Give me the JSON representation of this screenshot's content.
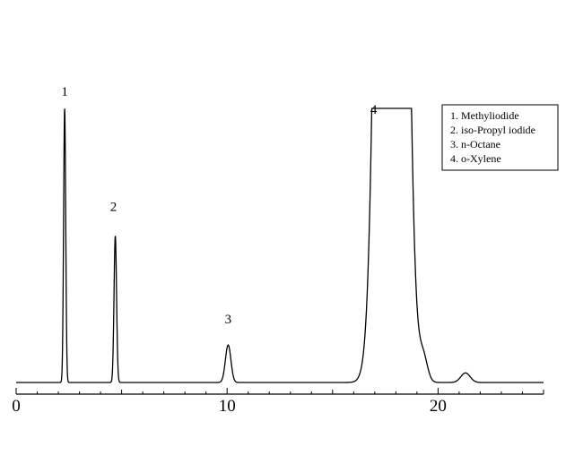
{
  "chart_data": {
    "type": "line",
    "title": "",
    "xlabel": "",
    "ylabel": "",
    "xlim": [
      0,
      25
    ],
    "ylim": [
      0,
      1
    ],
    "grid": false,
    "legend_position": "top-right",
    "line_color": "#000000",
    "x_ticks": [
      0,
      10,
      20
    ],
    "x_tick_labels": [
      "0",
      "10",
      "20"
    ],
    "peaks": [
      {
        "label": "1",
        "x": 2.3,
        "height": 1.0,
        "width": 0.05
      },
      {
        "label": "2",
        "x": 4.7,
        "height": 0.535,
        "width": 0.06
      },
      {
        "label": "3",
        "x": 10.05,
        "height": 0.137,
        "width": 0.13
      },
      {
        "label": "4",
        "x": 17.8,
        "height": 1.0,
        "width": 0.45
      }
    ],
    "minor_peaks": [
      {
        "x": 19.3,
        "height": 0.087,
        "width": 0.2
      },
      {
        "x": 21.3,
        "height": 0.035,
        "width": 0.22
      }
    ],
    "legend": [
      "1.  Methyliodide",
      "2.  iso-Propyl iodide",
      "3.  n-Octane",
      "4.  o-Xylene"
    ]
  }
}
